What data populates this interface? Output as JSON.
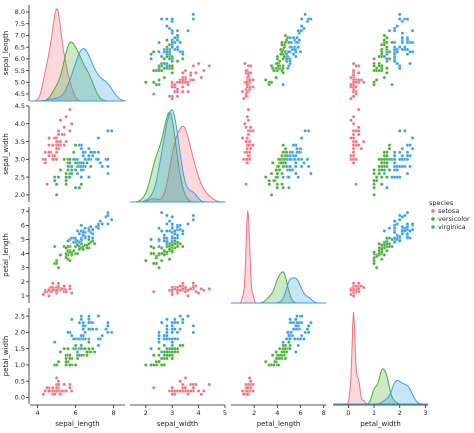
{
  "chart_data": {
    "type": "scatter",
    "variables": [
      "sepal_length",
      "sepal_width",
      "petal_length",
      "petal_width"
    ],
    "ranges": {
      "sepal_length": [
        3.9,
        8.6
      ],
      "sepal_width": [
        1.8,
        4.5
      ],
      "petal_length": [
        0.3,
        7.6
      ],
      "petal_width": [
        -0.2,
        2.75
      ]
    },
    "ticks": {
      "sepal_length": [
        4,
        6,
        8
      ],
      "sepal_width": [
        2.0,
        2.5,
        3.0,
        3.5,
        4.0,
        4.5
      ],
      "petal_length": [
        2,
        4,
        6
      ],
      "petal_width": [
        0.0,
        0.5,
        1.0,
        1.5,
        2.0,
        2.5
      ]
    },
    "row_ticks": {
      "sepal_length": [
        "4.5",
        "5.0",
        "5.5",
        "6.0",
        "6.5",
        "7.0",
        "7.5",
        "8.0"
      ],
      "sepal_width": [
        "2.0",
        "2.5",
        "3.0",
        "3.5",
        "4.0",
        "4.5"
      ],
      "petal_length": [
        "1",
        "2",
        "3",
        "4",
        "5",
        "6",
        "7"
      ],
      "petal_width": [
        "0.0",
        "0.5",
        "1.0",
        "1.5",
        "2.0",
        "2.5"
      ]
    },
    "col_ticks": {
      "sepal_length": [
        "4",
        "6",
        "8"
      ],
      "sepal_width": [
        "2",
        "3",
        "4",
        "5"
      ],
      "petal_length": [
        "2",
        "4",
        "6",
        "8"
      ],
      "petal_width": [
        "0",
        "1",
        "2",
        "3"
      ]
    },
    "col_tick_values": {
      "sepal_length": [
        4,
        6,
        8
      ],
      "sepal_width": [
        2,
        3,
        4,
        5
      ],
      "petal_length": [
        2,
        4,
        6,
        8
      ],
      "petal_width": [
        0,
        1,
        2,
        3
      ]
    },
    "col_ranges": {
      "sepal_length": [
        3.6,
        8.6
      ],
      "sepal_width": [
        1.4,
        5.0
      ],
      "petal_length": [
        0.0,
        8.2
      ],
      "petal_width": [
        -0.6,
        3.1
      ]
    },
    "row_ranges": {
      "sepal_length": [
        4.2,
        8.3
      ],
      "sepal_width": [
        1.8,
        4.5
      ],
      "petal_length": [
        0.5,
        7.3
      ],
      "petal_width": [
        -0.2,
        2.75
      ]
    },
    "species": [
      {
        "name": "setosa",
        "color": "#f0727e"
      },
      {
        "name": "versicolor",
        "color": "#4aad35"
      },
      {
        "name": "virginica",
        "color": "#3aa0e6"
      }
    ],
    "legend": {
      "title": "species",
      "placement": "right"
    },
    "samples": {
      "setosa": [
        [
          5.1,
          3.5,
          1.4,
          0.2
        ],
        [
          4.9,
          3.0,
          1.4,
          0.2
        ],
        [
          4.7,
          3.2,
          1.3,
          0.2
        ],
        [
          4.6,
          3.1,
          1.5,
          0.2
        ],
        [
          5.0,
          3.6,
          1.4,
          0.2
        ],
        [
          5.4,
          3.9,
          1.7,
          0.4
        ],
        [
          4.6,
          3.4,
          1.4,
          0.3
        ],
        [
          5.0,
          3.4,
          1.5,
          0.2
        ],
        [
          4.4,
          2.9,
          1.4,
          0.2
        ],
        [
          4.9,
          3.1,
          1.5,
          0.1
        ],
        [
          5.4,
          3.7,
          1.5,
          0.2
        ],
        [
          4.8,
          3.4,
          1.6,
          0.2
        ],
        [
          4.8,
          3.0,
          1.4,
          0.1
        ],
        [
          4.3,
          3.0,
          1.1,
          0.1
        ],
        [
          5.8,
          4.0,
          1.2,
          0.2
        ],
        [
          5.7,
          4.4,
          1.5,
          0.4
        ],
        [
          5.4,
          3.9,
          1.3,
          0.4
        ],
        [
          5.1,
          3.5,
          1.4,
          0.3
        ],
        [
          5.7,
          3.8,
          1.7,
          0.3
        ],
        [
          5.1,
          3.8,
          1.5,
          0.3
        ],
        [
          5.4,
          3.4,
          1.7,
          0.2
        ],
        [
          5.1,
          3.7,
          1.5,
          0.4
        ],
        [
          4.6,
          3.6,
          1.0,
          0.2
        ],
        [
          5.1,
          3.3,
          1.7,
          0.5
        ],
        [
          4.8,
          3.4,
          1.9,
          0.2
        ],
        [
          5.0,
          3.0,
          1.6,
          0.2
        ],
        [
          5.0,
          3.4,
          1.6,
          0.4
        ],
        [
          5.2,
          3.5,
          1.5,
          0.2
        ],
        [
          5.2,
          3.4,
          1.4,
          0.2
        ],
        [
          4.7,
          3.2,
          1.6,
          0.2
        ],
        [
          4.8,
          3.1,
          1.6,
          0.2
        ],
        [
          5.4,
          3.4,
          1.5,
          0.4
        ],
        [
          5.2,
          4.1,
          1.5,
          0.1
        ],
        [
          5.5,
          4.2,
          1.4,
          0.2
        ],
        [
          4.9,
          3.1,
          1.5,
          0.2
        ],
        [
          5.0,
          3.2,
          1.2,
          0.2
        ],
        [
          5.5,
          3.5,
          1.3,
          0.2
        ],
        [
          4.9,
          3.6,
          1.4,
          0.1
        ],
        [
          4.4,
          3.0,
          1.3,
          0.2
        ],
        [
          5.1,
          3.4,
          1.5,
          0.2
        ],
        [
          5.0,
          3.5,
          1.3,
          0.3
        ],
        [
          4.5,
          2.3,
          1.3,
          0.3
        ],
        [
          4.4,
          3.2,
          1.3,
          0.2
        ],
        [
          5.0,
          3.5,
          1.6,
          0.6
        ],
        [
          5.1,
          3.8,
          1.9,
          0.4
        ],
        [
          4.8,
          3.0,
          1.4,
          0.3
        ],
        [
          5.1,
          3.8,
          1.6,
          0.2
        ],
        [
          4.6,
          3.2,
          1.4,
          0.2
        ],
        [
          5.3,
          3.7,
          1.5,
          0.2
        ],
        [
          5.0,
          3.3,
          1.4,
          0.2
        ]
      ],
      "versicolor": [
        [
          7.0,
          3.2,
          4.7,
          1.4
        ],
        [
          6.4,
          3.2,
          4.5,
          1.5
        ],
        [
          6.9,
          3.1,
          4.9,
          1.5
        ],
        [
          5.5,
          2.3,
          4.0,
          1.3
        ],
        [
          6.5,
          2.8,
          4.6,
          1.5
        ],
        [
          5.7,
          2.8,
          4.5,
          1.3
        ],
        [
          6.3,
          3.3,
          4.7,
          1.6
        ],
        [
          4.9,
          2.4,
          3.3,
          1.0
        ],
        [
          6.6,
          2.9,
          4.6,
          1.3
        ],
        [
          5.2,
          2.7,
          3.9,
          1.4
        ],
        [
          5.0,
          2.0,
          3.5,
          1.0
        ],
        [
          5.9,
          3.0,
          4.2,
          1.5
        ],
        [
          6.0,
          2.2,
          4.0,
          1.0
        ],
        [
          6.1,
          2.9,
          4.7,
          1.4
        ],
        [
          5.6,
          2.9,
          3.6,
          1.3
        ],
        [
          6.7,
          3.1,
          4.4,
          1.4
        ],
        [
          5.6,
          3.0,
          4.5,
          1.5
        ],
        [
          5.8,
          2.7,
          4.1,
          1.0
        ],
        [
          6.2,
          2.2,
          4.5,
          1.5
        ],
        [
          5.6,
          2.5,
          3.9,
          1.1
        ],
        [
          5.9,
          3.2,
          4.8,
          1.8
        ],
        [
          6.1,
          2.8,
          4.0,
          1.3
        ],
        [
          6.3,
          2.5,
          4.9,
          1.5
        ],
        [
          6.1,
          2.8,
          4.7,
          1.2
        ],
        [
          6.4,
          2.9,
          4.3,
          1.3
        ],
        [
          6.6,
          3.0,
          4.4,
          1.4
        ],
        [
          6.8,
          2.8,
          4.8,
          1.4
        ],
        [
          6.7,
          3.0,
          5.0,
          1.7
        ],
        [
          6.0,
          2.9,
          4.5,
          1.5
        ],
        [
          5.7,
          2.6,
          3.5,
          1.0
        ],
        [
          5.5,
          2.4,
          3.8,
          1.1
        ],
        [
          5.5,
          2.4,
          3.7,
          1.0
        ],
        [
          5.8,
          2.7,
          3.9,
          1.2
        ],
        [
          6.0,
          2.7,
          5.1,
          1.6
        ],
        [
          5.4,
          3.0,
          4.5,
          1.5
        ],
        [
          6.0,
          3.4,
          4.5,
          1.6
        ],
        [
          6.7,
          3.1,
          4.7,
          1.5
        ],
        [
          6.3,
          2.3,
          4.4,
          1.3
        ],
        [
          5.6,
          3.0,
          4.1,
          1.3
        ],
        [
          5.5,
          2.5,
          4.0,
          1.3
        ],
        [
          5.5,
          2.6,
          4.4,
          1.2
        ],
        [
          6.1,
          3.0,
          4.6,
          1.4
        ],
        [
          5.8,
          2.6,
          4.0,
          1.2
        ],
        [
          5.0,
          2.3,
          3.3,
          1.0
        ],
        [
          5.6,
          2.7,
          4.2,
          1.3
        ],
        [
          5.7,
          3.0,
          4.2,
          1.2
        ],
        [
          5.7,
          2.9,
          4.2,
          1.3
        ],
        [
          6.2,
          2.9,
          4.3,
          1.3
        ],
        [
          5.1,
          2.5,
          3.0,
          1.1
        ],
        [
          5.7,
          2.8,
          4.1,
          1.3
        ]
      ],
      "virginica": [
        [
          6.3,
          3.3,
          6.0,
          2.5
        ],
        [
          5.8,
          2.7,
          5.1,
          1.9
        ],
        [
          7.1,
          3.0,
          5.9,
          2.1
        ],
        [
          6.3,
          2.9,
          5.6,
          1.8
        ],
        [
          6.5,
          3.0,
          5.8,
          2.2
        ],
        [
          7.6,
          3.0,
          6.6,
          2.1
        ],
        [
          4.9,
          2.5,
          4.5,
          1.7
        ],
        [
          7.3,
          2.9,
          6.3,
          1.8
        ],
        [
          6.7,
          2.5,
          5.8,
          1.8
        ],
        [
          7.2,
          3.6,
          6.1,
          2.5
        ],
        [
          6.5,
          3.2,
          5.1,
          2.0
        ],
        [
          6.4,
          2.7,
          5.3,
          1.9
        ],
        [
          6.8,
          3.0,
          5.5,
          2.1
        ],
        [
          5.7,
          2.5,
          5.0,
          2.0
        ],
        [
          5.8,
          2.8,
          5.1,
          2.4
        ],
        [
          6.4,
          3.2,
          5.3,
          2.3
        ],
        [
          6.5,
          3.0,
          5.5,
          1.8
        ],
        [
          7.7,
          3.8,
          6.7,
          2.2
        ],
        [
          7.7,
          2.6,
          6.9,
          2.3
        ],
        [
          6.0,
          2.2,
          5.0,
          1.5
        ],
        [
          6.9,
          3.2,
          5.7,
          2.3
        ],
        [
          5.6,
          2.8,
          4.9,
          2.0
        ],
        [
          7.7,
          2.8,
          6.7,
          2.0
        ],
        [
          6.3,
          2.7,
          4.9,
          1.8
        ],
        [
          6.7,
          3.3,
          5.7,
          2.1
        ],
        [
          7.2,
          3.2,
          6.0,
          1.8
        ],
        [
          6.2,
          2.8,
          4.8,
          1.8
        ],
        [
          6.1,
          3.0,
          4.9,
          1.8
        ],
        [
          6.4,
          2.8,
          5.6,
          2.1
        ],
        [
          7.2,
          3.0,
          5.8,
          1.6
        ],
        [
          7.4,
          2.8,
          6.1,
          1.9
        ],
        [
          7.9,
          3.8,
          6.4,
          2.0
        ],
        [
          6.4,
          2.8,
          5.6,
          2.2
        ],
        [
          6.3,
          2.8,
          5.1,
          1.5
        ],
        [
          6.1,
          2.6,
          5.6,
          1.4
        ],
        [
          7.7,
          3.0,
          6.1,
          2.3
        ],
        [
          6.3,
          3.4,
          5.6,
          2.4
        ],
        [
          6.4,
          3.1,
          5.5,
          1.8
        ],
        [
          6.0,
          3.0,
          4.8,
          1.8
        ],
        [
          6.9,
          3.1,
          5.4,
          2.1
        ],
        [
          6.7,
          3.1,
          5.6,
          2.4
        ],
        [
          6.9,
          3.1,
          5.1,
          2.3
        ],
        [
          5.8,
          2.7,
          5.1,
          1.9
        ],
        [
          6.8,
          3.2,
          5.9,
          2.3
        ],
        [
          6.7,
          3.3,
          5.7,
          2.5
        ],
        [
          6.7,
          3.0,
          5.2,
          2.3
        ],
        [
          6.3,
          2.5,
          5.0,
          1.9
        ],
        [
          6.5,
          3.0,
          5.2,
          2.0
        ],
        [
          6.2,
          3.4,
          5.4,
          2.3
        ],
        [
          5.9,
          3.0,
          5.1,
          1.8
        ]
      ]
    }
  }
}
